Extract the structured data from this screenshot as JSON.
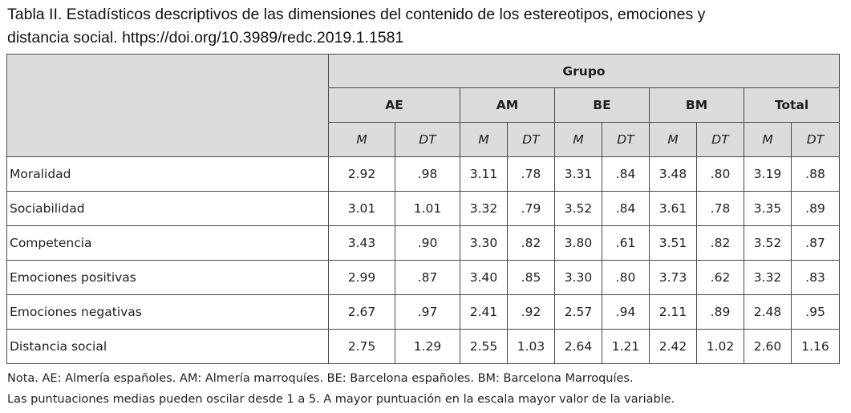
{
  "caption": {
    "line1": "Tabla II. Estadísticos descriptivos de las dimensiones del contenido de los estereotipos, emociones y",
    "line2": "distancia social. https://doi.org/10.3989/redc.2019.1.1581"
  },
  "table": {
    "group_header": "Grupo",
    "groups": [
      "AE",
      "AM",
      "BE",
      "BM",
      "Total"
    ],
    "stat_headers": [
      "M",
      "DT"
    ],
    "rows": [
      {
        "label": "Moralidad",
        "values": [
          "2.92",
          ".98",
          "3.11",
          ".78",
          "3.31",
          ".84",
          "3.48",
          ".80",
          "3.19",
          ".88"
        ]
      },
      {
        "label": "Sociabilidad",
        "values": [
          "3.01",
          "1.01",
          "3.32",
          ".79",
          "3.52",
          ".84",
          "3.61",
          ".78",
          "3.35",
          ".89"
        ]
      },
      {
        "label": "Competencia",
        "values": [
          "3.43",
          ".90",
          "3.30",
          ".82",
          "3.80",
          ".61",
          "3.51",
          ".82",
          "3.52",
          ".87"
        ]
      },
      {
        "label": "Emociones positivas",
        "values": [
          "2.99",
          ".87",
          "3.40",
          ".85",
          "3.30",
          ".80",
          "3.73",
          ".62",
          "3.32",
          ".83"
        ]
      },
      {
        "label": "Emociones negativas",
        "values": [
          "2.67",
          ".97",
          "2.41",
          ".92",
          "2.57",
          ".94",
          "2.11",
          ".89",
          "2.48",
          ".95"
        ]
      },
      {
        "label": "Distancia social",
        "values": [
          "2.75",
          "1.29",
          "2.55",
          "1.03",
          "2.64",
          "1.21",
          "2.42",
          "1.02",
          "2.60",
          "1.16"
        ]
      }
    ]
  },
  "note": {
    "line1": "Nota. AE: Almería españoles. AM: Almería marroquíes. BE: Barcelona españoles. BM: Barcelona Marroquíes.",
    "line2": "Las puntuaciones medias pueden oscilar desde 1 a 5. A mayor puntuación en la escala mayor valor de la variable."
  }
}
